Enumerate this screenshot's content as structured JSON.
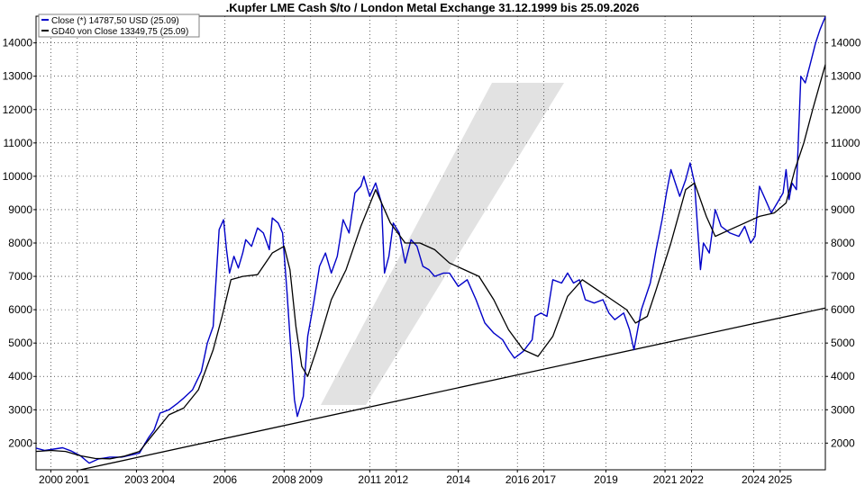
{
  "chart_data": {
    "type": "line",
    "title": ".Kupfer LME Cash $/to / London Metal Exchange 31.12.1999 bis 25.09.2026",
    "xlabel": "",
    "ylabel": "",
    "xlim": [
      2000.0,
      2026.73
    ],
    "ylim": [
      1200,
      14800
    ],
    "yticks": [
      2000,
      3000,
      4000,
      5000,
      6000,
      7000,
      8000,
      9000,
      10000,
      11000,
      12000,
      13000,
      14000
    ],
    "ytick_labels": [
      "2000",
      "3000",
      "4000",
      "5000",
      "6000",
      "7000",
      "8000",
      "9000",
      "10000",
      "11000",
      "12000",
      "13000",
      "14000"
    ],
    "xtick_labels": [
      {
        "label": "2000",
        "x": 2000.5
      },
      {
        "label": "2001",
        "x": 2001.4
      },
      {
        "label": "2003",
        "x": 2003.4
      },
      {
        "label": "2004",
        "x": 2004.3
      },
      {
        "label": "2006",
        "x": 2006.4
      },
      {
        "label": "2008",
        "x": 2008.4
      },
      {
        "label": "2009",
        "x": 2009.3
      },
      {
        "label": "2011",
        "x": 2011.3
      },
      {
        "label": "2012",
        "x": 2012.2
      },
      {
        "label": "2014",
        "x": 2014.3
      },
      {
        "label": "2016",
        "x": 2016.3
      },
      {
        "label": "2017",
        "x": 2017.2
      },
      {
        "label": "2019",
        "x": 2019.3
      },
      {
        "label": "2021",
        "x": 2021.3
      },
      {
        "label": "2022",
        "x": 2022.2
      },
      {
        "label": "2024",
        "x": 2024.3
      },
      {
        "label": "2025",
        "x": 2025.2
      }
    ],
    "grid": true,
    "legend_position": "top-left",
    "legend": [
      {
        "label": "Close (*) 14787,50 USD (25.09)",
        "color": "#0000c8"
      },
      {
        "label": "GD40 von Close 13349,75 (25.09)",
        "color": "#000000"
      }
    ],
    "series": [
      {
        "name": "Close (*) 14787,50 USD (25.09)",
        "color": "#0000c8",
        "x": [
          2000.0,
          2000.3,
          2000.6,
          2000.9,
          2001.2,
          2001.5,
          2001.8,
          2002.1,
          2002.5,
          2002.9,
          2003.2,
          2003.5,
          2003.8,
          2004.0,
          2004.2,
          2004.5,
          2004.8,
          2005.0,
          2005.3,
          2005.6,
          2005.8,
          2006.0,
          2006.2,
          2006.35,
          2006.45,
          2006.55,
          2006.7,
          2006.85,
          2007.0,
          2007.1,
          2007.3,
          2007.5,
          2007.7,
          2007.9,
          2008.0,
          2008.2,
          2008.35,
          2008.5,
          2008.6,
          2008.75,
          2008.85,
          2008.95,
          2009.05,
          2009.2,
          2009.4,
          2009.6,
          2009.8,
          2010.0,
          2010.2,
          2010.4,
          2010.6,
          2010.8,
          2011.0,
          2011.1,
          2011.3,
          2011.5,
          2011.7,
          2011.8,
          2011.95,
          2012.1,
          2012.3,
          2012.5,
          2012.7,
          2012.9,
          2013.1,
          2013.3,
          2013.5,
          2013.8,
          2014.0,
          2014.3,
          2014.6,
          2014.9,
          2015.2,
          2015.5,
          2015.8,
          2016.0,
          2016.2,
          2016.5,
          2016.8,
          2016.9,
          2017.1,
          2017.3,
          2017.5,
          2017.8,
          2018.0,
          2018.2,
          2018.4,
          2018.6,
          2018.9,
          2019.2,
          2019.4,
          2019.6,
          2019.9,
          2020.1,
          2020.25,
          2020.5,
          2020.8,
          2021.0,
          2021.2,
          2021.35,
          2021.5,
          2021.8,
          2022.0,
          2022.15,
          2022.3,
          2022.5,
          2022.6,
          2022.8,
          2023.0,
          2023.2,
          2023.5,
          2023.8,
          2024.0,
          2024.2,
          2024.35,
          2024.5,
          2024.7,
          2024.9,
          2025.1,
          2025.3,
          2025.4,
          2025.5,
          2025.6,
          2025.75,
          2025.9,
          2026.05,
          2026.2,
          2026.4,
          2026.55,
          2026.73
        ],
        "y": [
          1850,
          1780,
          1820,
          1860,
          1760,
          1620,
          1400,
          1520,
          1580,
          1580,
          1640,
          1700,
          2150,
          2400,
          2900,
          3000,
          3200,
          3350,
          3600,
          4150,
          5000,
          5500,
          8400,
          8700,
          7800,
          7100,
          7600,
          7250,
          7700,
          8100,
          7900,
          8450,
          8300,
          7800,
          8750,
          8600,
          8300,
          6500,
          5200,
          3300,
          2800,
          3100,
          3400,
          5200,
          6200,
          7300,
          7700,
          7100,
          7600,
          8700,
          8300,
          9500,
          9700,
          10000,
          9400,
          9800,
          9200,
          7100,
          7600,
          8600,
          8300,
          7400,
          8100,
          7900,
          7300,
          7200,
          7000,
          7100,
          7100,
          6700,
          6900,
          6300,
          5600,
          5300,
          5100,
          4800,
          4550,
          4750,
          5100,
          5800,
          5900,
          5800,
          6900,
          6800,
          7100,
          6800,
          6900,
          6300,
          6200,
          6300,
          5900,
          5700,
          5900,
          5400,
          4800,
          6000,
          6800,
          7800,
          8700,
          9500,
          10200,
          9400,
          9900,
          10400,
          9800,
          7200,
          8000,
          7700,
          9000,
          8500,
          8300,
          8200,
          8500,
          8000,
          8200,
          9700,
          9300,
          8900,
          9200,
          9500,
          10200,
          9300,
          9800,
          9600,
          13000,
          12800,
          13300,
          14000,
          14400,
          14787.5
        ]
      },
      {
        "name": "GD40 von Close 13349,75 (25.09)",
        "color": "#000000",
        "x": [
          2000.0,
          2000.5,
          2001.0,
          2001.5,
          2002.0,
          2002.5,
          2003.0,
          2003.5,
          2004.0,
          2004.5,
          2005.0,
          2005.5,
          2006.0,
          2006.3,
          2006.6,
          2007.0,
          2007.5,
          2008.0,
          2008.4,
          2008.6,
          2008.8,
          2009.0,
          2009.2,
          2009.5,
          2010.0,
          2010.5,
          2011.0,
          2011.5,
          2012.0,
          2012.5,
          2013.0,
          2013.5,
          2014.0,
          2014.5,
          2015.0,
          2015.5,
          2016.0,
          2016.5,
          2017.0,
          2017.5,
          2018.0,
          2018.5,
          2019.0,
          2019.5,
          2020.0,
          2020.3,
          2020.7,
          2021.0,
          2021.5,
          2022.0,
          2022.3,
          2022.7,
          2023.0,
          2023.5,
          2024.0,
          2024.5,
          2025.0,
          2025.4,
          2025.7,
          2026.0,
          2026.3,
          2026.73
        ],
        "y": [
          1750,
          1780,
          1750,
          1620,
          1540,
          1530,
          1610,
          1750,
          2300,
          2850,
          3050,
          3600,
          4800,
          5800,
          6900,
          7000,
          7050,
          7700,
          7900,
          7200,
          5500,
          4300,
          4000,
          4800,
          6300,
          7200,
          8500,
          9600,
          8600,
          8000,
          8000,
          7800,
          7400,
          7200,
          7000,
          6300,
          5400,
          4800,
          4600,
          5200,
          6400,
          6900,
          6600,
          6300,
          6000,
          5600,
          5800,
          6600,
          8000,
          9600,
          9800,
          8800,
          8200,
          8400,
          8600,
          8800,
          8900,
          9200,
          10200,
          11000,
          12000,
          13349.75
        ]
      }
    ],
    "annotations": [
      {
        "type": "trendline",
        "color": "#000000",
        "x": [
          2001.5,
          2026.73
        ],
        "y": [
          1200,
          6050
        ]
      }
    ],
    "watermark": {
      "type": "logo-slash",
      "color": "#e2e2e2"
    }
  }
}
